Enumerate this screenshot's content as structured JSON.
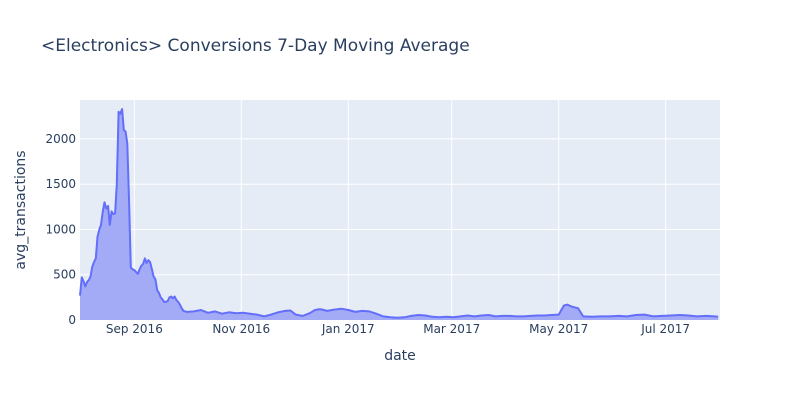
{
  "chart_data": {
    "type": "area",
    "title": "<Electronics> Conversions 7-Day Moving Average",
    "xlabel": "date",
    "ylabel": "avg_transactions",
    "xlim": [
      "2016-08-01",
      "2017-08-01"
    ],
    "ylim": [
      0,
      2430
    ],
    "x_ticks": [
      {
        "date": "2016-09-01",
        "label": "Sep 2016"
      },
      {
        "date": "2016-11-01",
        "label": "Nov 2016"
      },
      {
        "date": "2017-01-01",
        "label": "Jan 2017"
      },
      {
        "date": "2017-03-01",
        "label": "Mar 2017"
      },
      {
        "date": "2017-05-01",
        "label": "May 2017"
      },
      {
        "date": "2017-07-01",
        "label": "Jul 2017"
      }
    ],
    "y_ticks": [
      {
        "value": 0,
        "label": "0"
      },
      {
        "value": 500,
        "label": "500"
      },
      {
        "value": 1000,
        "label": "1000"
      },
      {
        "value": 1500,
        "label": "1500"
      },
      {
        "value": 2000,
        "label": "2000"
      }
    ],
    "grid": true,
    "series": [
      {
        "line_color": "#636efa",
        "fill_color": "#a4abf6",
        "points": [
          [
            "2016-08-01",
            270
          ],
          [
            "2016-08-02",
            470
          ],
          [
            "2016-08-03",
            430
          ],
          [
            "2016-08-04",
            370
          ],
          [
            "2016-08-05",
            420
          ],
          [
            "2016-08-06",
            440
          ],
          [
            "2016-08-07",
            480
          ],
          [
            "2016-08-08",
            590
          ],
          [
            "2016-08-09",
            640
          ],
          [
            "2016-08-10",
            680
          ],
          [
            "2016-08-11",
            920
          ],
          [
            "2016-08-12",
            1000
          ],
          [
            "2016-08-13",
            1050
          ],
          [
            "2016-08-14",
            1200
          ],
          [
            "2016-08-15",
            1300
          ],
          [
            "2016-08-16",
            1230
          ],
          [
            "2016-08-17",
            1260
          ],
          [
            "2016-08-18",
            1050
          ],
          [
            "2016-08-19",
            1200
          ],
          [
            "2016-08-20",
            1170
          ],
          [
            "2016-08-21",
            1180
          ],
          [
            "2016-08-22",
            1500
          ],
          [
            "2016-08-23",
            2300
          ],
          [
            "2016-08-24",
            2280
          ],
          [
            "2016-08-25",
            2330
          ],
          [
            "2016-08-26",
            2100
          ],
          [
            "2016-08-27",
            2080
          ],
          [
            "2016-08-28",
            1950
          ],
          [
            "2016-08-29",
            1300
          ],
          [
            "2016-08-30",
            580
          ],
          [
            "2016-08-31",
            560
          ],
          [
            "2016-09-01",
            550
          ],
          [
            "2016-09-02",
            530
          ],
          [
            "2016-09-03",
            510
          ],
          [
            "2016-09-04",
            560
          ],
          [
            "2016-09-05",
            600
          ],
          [
            "2016-09-06",
            620
          ],
          [
            "2016-09-07",
            680
          ],
          [
            "2016-09-08",
            630
          ],
          [
            "2016-09-09",
            660
          ],
          [
            "2016-09-10",
            640
          ],
          [
            "2016-09-11",
            560
          ],
          [
            "2016-09-12",
            480
          ],
          [
            "2016-09-13",
            450
          ],
          [
            "2016-09-14",
            330
          ],
          [
            "2016-09-15",
            300
          ],
          [
            "2016-09-16",
            250
          ],
          [
            "2016-09-17",
            230
          ],
          [
            "2016-09-18",
            200
          ],
          [
            "2016-09-19",
            200
          ],
          [
            "2016-09-20",
            210
          ],
          [
            "2016-09-21",
            250
          ],
          [
            "2016-09-22",
            260
          ],
          [
            "2016-09-23",
            240
          ],
          [
            "2016-09-24",
            260
          ],
          [
            "2016-09-25",
            220
          ],
          [
            "2016-09-26",
            200
          ],
          [
            "2016-09-27",
            170
          ],
          [
            "2016-09-28",
            130
          ],
          [
            "2016-09-29",
            100
          ],
          [
            "2016-10-01",
            90
          ],
          [
            "2016-10-05",
            95
          ],
          [
            "2016-10-09",
            110
          ],
          [
            "2016-10-13",
            80
          ],
          [
            "2016-10-17",
            95
          ],
          [
            "2016-10-21",
            70
          ],
          [
            "2016-10-25",
            85
          ],
          [
            "2016-10-29",
            75
          ],
          [
            "2016-11-02",
            80
          ],
          [
            "2016-11-06",
            70
          ],
          [
            "2016-11-10",
            60
          ],
          [
            "2016-11-14",
            40
          ],
          [
            "2016-11-18",
            60
          ],
          [
            "2016-11-22",
            85
          ],
          [
            "2016-11-26",
            100
          ],
          [
            "2016-11-29",
            105
          ],
          [
            "2016-12-02",
            60
          ],
          [
            "2016-12-06",
            45
          ],
          [
            "2016-12-10",
            75
          ],
          [
            "2016-12-13",
            110
          ],
          [
            "2016-12-16",
            120
          ],
          [
            "2016-12-20",
            100
          ],
          [
            "2016-12-24",
            115
          ],
          [
            "2016-12-28",
            125
          ],
          [
            "2017-01-01",
            110
          ],
          [
            "2017-01-05",
            90
          ],
          [
            "2017-01-09",
            100
          ],
          [
            "2017-01-13",
            95
          ],
          [
            "2017-01-17",
            70
          ],
          [
            "2017-01-21",
            40
          ],
          [
            "2017-01-25",
            30
          ],
          [
            "2017-01-29",
            25
          ],
          [
            "2017-02-02",
            30
          ],
          [
            "2017-02-06",
            45
          ],
          [
            "2017-02-10",
            55
          ],
          [
            "2017-02-14",
            50
          ],
          [
            "2017-02-18",
            35
          ],
          [
            "2017-02-22",
            30
          ],
          [
            "2017-02-26",
            35
          ],
          [
            "2017-03-02",
            30
          ],
          [
            "2017-03-06",
            40
          ],
          [
            "2017-03-10",
            50
          ],
          [
            "2017-03-14",
            40
          ],
          [
            "2017-03-18",
            50
          ],
          [
            "2017-03-22",
            55
          ],
          [
            "2017-03-26",
            40
          ],
          [
            "2017-03-30",
            45
          ],
          [
            "2017-04-03",
            45
          ],
          [
            "2017-04-07",
            40
          ],
          [
            "2017-04-11",
            40
          ],
          [
            "2017-04-15",
            45
          ],
          [
            "2017-04-19",
            50
          ],
          [
            "2017-04-23",
            50
          ],
          [
            "2017-04-27",
            55
          ],
          [
            "2017-05-01",
            60
          ],
          [
            "2017-05-04",
            160
          ],
          [
            "2017-05-06",
            170
          ],
          [
            "2017-05-08",
            150
          ],
          [
            "2017-05-10",
            140
          ],
          [
            "2017-05-12",
            130
          ],
          [
            "2017-05-15",
            40
          ],
          [
            "2017-05-20",
            35
          ],
          [
            "2017-05-25",
            40
          ],
          [
            "2017-05-30",
            40
          ],
          [
            "2017-06-04",
            45
          ],
          [
            "2017-06-09",
            40
          ],
          [
            "2017-06-14",
            55
          ],
          [
            "2017-06-19",
            60
          ],
          [
            "2017-06-24",
            40
          ],
          [
            "2017-06-29",
            45
          ],
          [
            "2017-07-04",
            50
          ],
          [
            "2017-07-09",
            55
          ],
          [
            "2017-07-14",
            50
          ],
          [
            "2017-07-19",
            40
          ],
          [
            "2017-07-24",
            45
          ],
          [
            "2017-07-29",
            40
          ],
          [
            "2017-07-31",
            35
          ]
        ]
      }
    ]
  }
}
